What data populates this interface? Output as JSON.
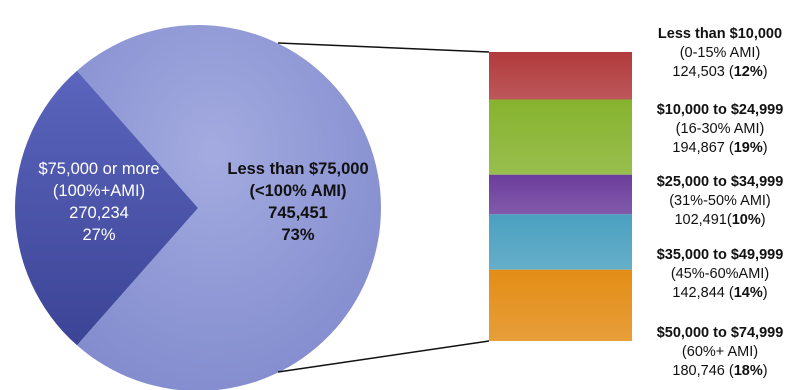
{
  "colors": {
    "pie_main": "#8f99d6",
    "pie_slice": "#4e58b0",
    "seg_1": "#b13a3c",
    "seg_2": "#86b32e",
    "seg_3": "#6c3d9c",
    "seg_4": "#4aa0c0",
    "seg_5": "#e38d16"
  },
  "chart_data": {
    "type": "bar-of-pie",
    "pie": [
      {
        "label": "$75,000 or more",
        "sub": "(100%+AMI)",
        "count": "270,234",
        "pct": "27%",
        "value": 270234,
        "percent": 27
      },
      {
        "label": "Less than $75,000",
        "sub": "(<100% AMI)",
        "count": "745,451",
        "pct": "73%",
        "value": 745451,
        "percent": 73
      }
    ],
    "breakdown": [
      {
        "label": "Less than $10,000",
        "sub": "(0-15% AMI)",
        "count": "124,503 (",
        "pct": "12%",
        "close": ")",
        "value": 124503,
        "percent": 12
      },
      {
        "label": "$10,000 to $24,999",
        "sub": "(16-30% AMI)",
        "count": "194,867 (",
        "pct": "19%",
        "close": ")",
        "value": 194867,
        "percent": 19
      },
      {
        "label": "$25,000 to $34,999",
        "sub": "(31%-50% AMI)",
        "count": "102,491(",
        "pct": "10%",
        "close": ")",
        "value": 102491,
        "percent": 10
      },
      {
        "label": "$35,000 to $49,999",
        "sub": "(45%-60%AMI)",
        "count": "142,844 (",
        "pct": "14%",
        "close": ")",
        "value": 142844,
        "percent": 14
      },
      {
        "label": "$50,000 to $74,999",
        "sub": "(60%+ AMI)",
        "count": "180,746 (",
        "pct": "18%",
        "close": ")",
        "value": 180746,
        "percent": 18
      }
    ]
  }
}
